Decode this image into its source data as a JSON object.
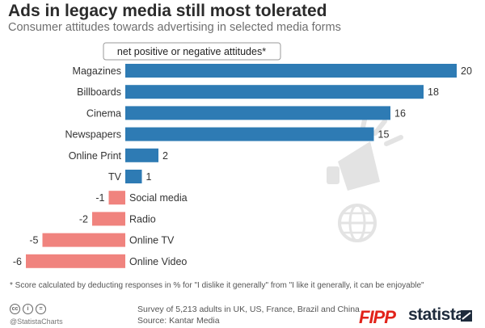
{
  "title": "Ads in legacy media still most tolerated",
  "subtitle": "Consumer attitudes towards advertising in selected media forms",
  "footnote": "* Score calculated by deducting responses in % for \"I dislike it generally\" from \"I like it generally, it can be enjoyable\"",
  "source": {
    "survey": "Survey of 5,213 adults in UK, US, France, Brazil and China",
    "source": "Source: Kantar Media"
  },
  "branding": {
    "handle": "@StatistaCharts",
    "fipp": "FIPP",
    "statista": "statista"
  },
  "icons": [
    "cc-icon",
    "by-icon",
    "nd-icon",
    "megaphone-globe-icon",
    "statista-logo-icon"
  ],
  "colors": {
    "positive": "#2e7bb4",
    "negative": "#f0837e",
    "title": "#2b2b2b",
    "watermark": "#e3e3e3"
  },
  "chart_data": {
    "type": "bar",
    "orientation": "horizontal",
    "series_label": "net positive or negative attitudes*",
    "categories": [
      "Magazines",
      "Billboards",
      "Cinema",
      "Newspapers",
      "Online Print",
      "TV",
      "Social media",
      "Radio",
      "Online TV",
      "Online Video"
    ],
    "values": [
      20,
      18,
      16,
      15,
      2,
      1,
      -1,
      -2,
      -5,
      -6
    ],
    "xlim": [
      -6,
      20
    ],
    "grid": false,
    "data_labels": true
  }
}
